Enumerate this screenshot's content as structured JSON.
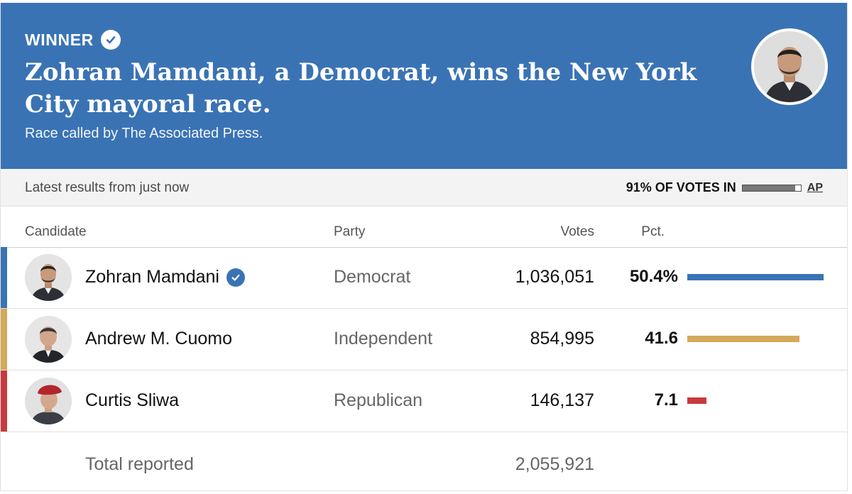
{
  "banner": {
    "winner_label": "WINNER",
    "headline": "Zohran Mamdani, a Democrat, wins the New York City mayoral race.",
    "subtitle": "Race called by The Associated Press.",
    "background_color": "#3a73b4"
  },
  "status": {
    "latest": "Latest results from just now",
    "votes_in": "91% OF VOTES IN",
    "reporting_fraction": 0.91,
    "source_link": "AP"
  },
  "table": {
    "headers": {
      "candidate": "Candidate",
      "party": "Party",
      "votes": "Votes",
      "pct": "Pct."
    },
    "rows": [
      {
        "name": "Zohran Mamdani",
        "party": "Democrat",
        "votes": "1,036,051",
        "pct": "50.4%",
        "pct_value": 50.4,
        "color": "#3a73b4",
        "winner": true,
        "avatar_icon": "candidate-photo"
      },
      {
        "name": "Andrew M. Cuomo",
        "party": "Independent",
        "votes": "854,995",
        "pct": "41.6",
        "pct_value": 41.6,
        "color": "#d3a95a",
        "winner": false,
        "avatar_icon": "candidate-photo"
      },
      {
        "name": "Curtis Sliwa",
        "party": "Republican",
        "votes": "146,137",
        "pct": "7.1",
        "pct_value": 7.1,
        "color": "#c8393f",
        "winner": false,
        "avatar_icon": "candidate-photo"
      }
    ],
    "total_label": "Total reported",
    "total_votes": "2,055,921"
  }
}
